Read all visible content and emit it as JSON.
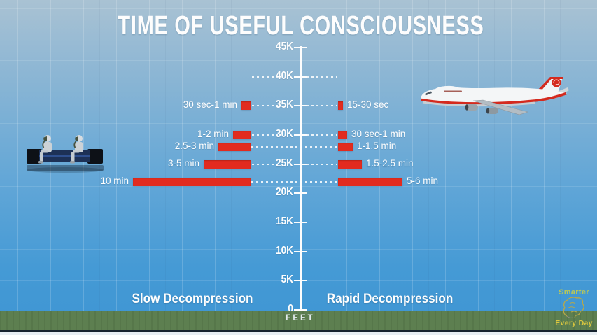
{
  "title": "TIME OF USEFUL CONSCIOUSNESS",
  "sections": {
    "left": "Slow Decompression",
    "right": "Rapid Decompression"
  },
  "logo": {
    "line1": "Smarter",
    "line2": "Every Day"
  },
  "illustrations": {
    "left": "altitude-chamber-crew-with-oxygen-masks",
    "right": "boeing-747-cargo-airplane"
  },
  "colors": {
    "bar": "#e22b1f",
    "axis": "#fdfdfd",
    "bg_top": "#a9c2d3",
    "bg_bottom": "#3e95d3",
    "ground": "#5d7f50",
    "logo_green": "#b9c757",
    "logo_yellow": "#ddc83f"
  },
  "chart_data": {
    "type": "bar",
    "orientation": "horizontal-mirrored",
    "title": "TIME OF USEFUL CONSCIOUSNESS",
    "axis": {
      "label": "FEET",
      "range_ft": [
        0,
        45000
      ],
      "ticks": [
        {
          "label": "45K",
          "ft": 45000
        },
        {
          "label": "40K",
          "ft": 40000
        },
        {
          "label": "35K",
          "ft": 35000
        },
        {
          "label": "30K",
          "ft": 30000
        },
        {
          "label": "25K",
          "ft": 25000
        },
        {
          "label": "20K",
          "ft": 20000
        },
        {
          "label": "15K",
          "ft": 15000
        },
        {
          "label": "10K",
          "ft": 10000
        },
        {
          "label": "5K",
          "ft": 5000
        },
        {
          "label": "0",
          "ft": 0
        }
      ]
    },
    "dashed_gridlines_at_ft": [
      40000,
      35000,
      30000,
      28000,
      25000,
      22000
    ],
    "series": [
      {
        "name": "Slow Decompression",
        "side": "left",
        "points": [
          {
            "altitude_ft": 35000,
            "label": "30 sec-1 min",
            "duration_min": 0.75
          },
          {
            "altitude_ft": 30000,
            "label": "1-2 min",
            "duration_min": 1.5
          },
          {
            "altitude_ft": 28000,
            "label": "2.5-3 min",
            "duration_min": 2.75
          },
          {
            "altitude_ft": 25000,
            "label": "3-5 min",
            "duration_min": 4.0
          },
          {
            "altitude_ft": 22000,
            "label": "10 min",
            "duration_min": 10.0
          }
        ]
      },
      {
        "name": "Rapid Decompression",
        "side": "right",
        "points": [
          {
            "altitude_ft": 35000,
            "label": "15-30 sec",
            "duration_min": 0.375
          },
          {
            "altitude_ft": 30000,
            "label": "30 sec-1 min",
            "duration_min": 0.75
          },
          {
            "altitude_ft": 28000,
            "label": "1-1.5 min",
            "duration_min": 1.25
          },
          {
            "altitude_ft": 25000,
            "label": "1.5-2.5 min",
            "duration_min": 2.0
          },
          {
            "altitude_ft": 22000,
            "label": "5-6 min",
            "duration_min": 5.5
          }
        ]
      }
    ]
  }
}
